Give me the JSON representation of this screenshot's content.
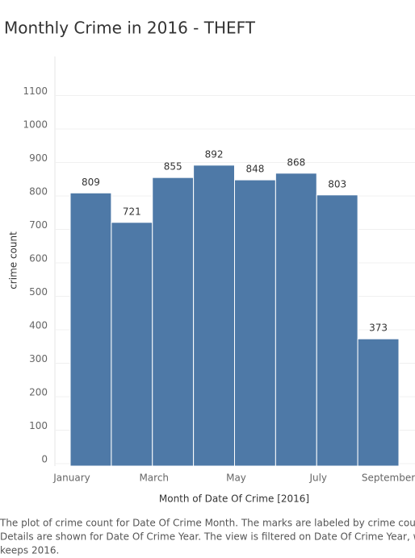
{
  "chart_data": {
    "type": "bar",
    "title": "Monthly Crime in 2016 - THEFT",
    "xlabel": "Month of Date Of Crime [2016]",
    "ylabel": "crime count",
    "categories": [
      "January",
      null,
      "March",
      null,
      "May",
      null,
      "July",
      null
    ],
    "end_label": "September",
    "values": [
      809,
      721,
      855,
      892,
      848,
      868,
      803,
      373
    ],
    "color": "#4e79a7",
    "ylim": [
      0,
      1200
    ],
    "yticks": [
      0,
      100,
      200,
      300,
      400,
      500,
      600,
      700,
      800,
      900,
      1000,
      1100
    ],
    "grid": true,
    "caption": [
      "The plot of crime count for Date Of Crime Month.  The marks are labeled by crime count.",
      "Details are shown for Date Of Crime Year. The view is filtered on Date Of Crime Year, which",
      "keeps 2016."
    ]
  }
}
